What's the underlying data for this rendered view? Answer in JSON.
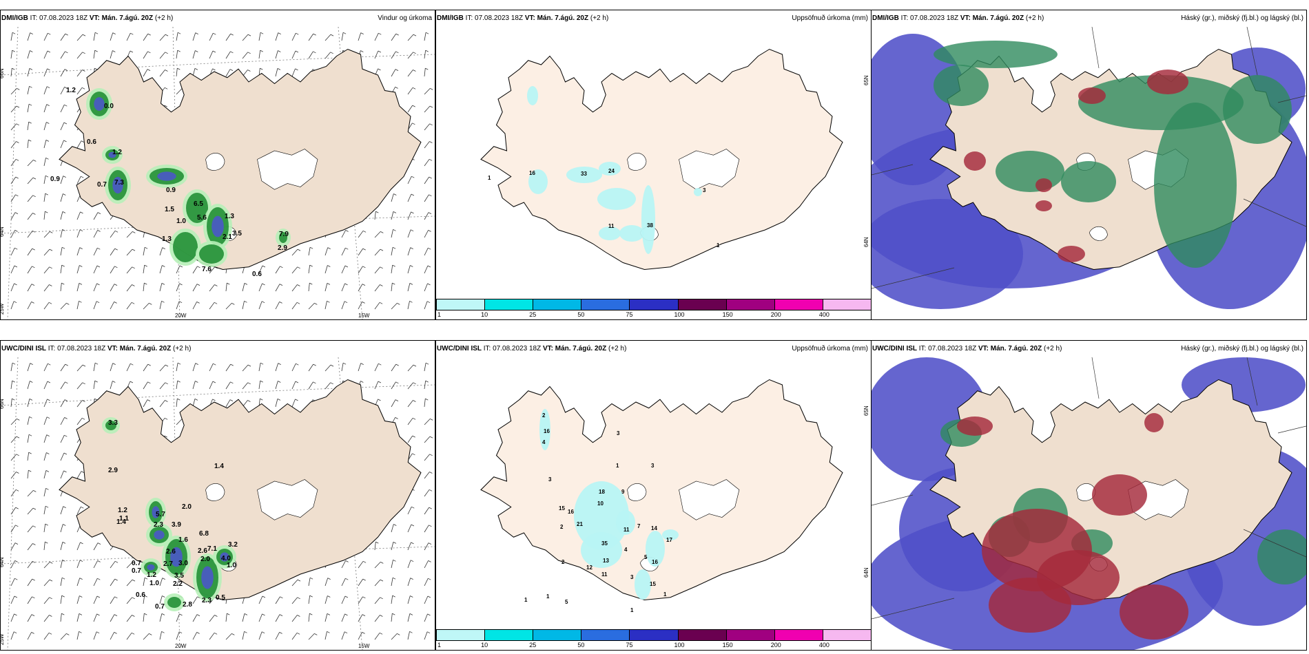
{
  "panels": [
    {
      "id": "p1",
      "model": "DMI/IGB",
      "it_label": "IT:",
      "it_value": "07.08.2023 18Z",
      "vt_label": "VT:",
      "vt_value": "Mán. 7.ágú. 20Z",
      "offset": "(+2 h)",
      "title": "Vindur og úrkoma",
      "type": "wind",
      "axis": {
        "lat_top": "66N",
        "lat_mid": "64N",
        "lon_left": "25W",
        "lon_mid": "20W",
        "lon_right": "15W"
      },
      "values": [
        "1.2",
        "0.0",
        "0.6",
        "1.2",
        "0.9",
        "7.3",
        "0.7",
        "0.9",
        "1.5",
        "6.5",
        "5.6",
        "1.0",
        "1.3",
        "1.3",
        "3.5",
        "2.1",
        "7.9",
        "2.9",
        "7.6",
        "0.6"
      ]
    },
    {
      "id": "p2",
      "model": "DMI/IGB",
      "it_label": "IT:",
      "it_value": "07.08.2023 18Z",
      "vt_label": "VT:",
      "vt_value": "Mán. 7.ágú. 20Z",
      "offset": "(+2 h)",
      "title": "Uppsöfnuð úrkoma (mm)",
      "type": "accum",
      "axis": {
        "lat_top": "65N",
        "lat_mid": "64N"
      },
      "values": [
        "1",
        "16",
        "33",
        "24",
        "11",
        "38",
        "3",
        "1"
      ]
    },
    {
      "id": "p3",
      "model": "DMI/IGB",
      "it_label": "IT:",
      "it_value": "07.08.2023 18Z",
      "vt_label": "VT:",
      "vt_value": "Mán. 7.ágú. 20Z",
      "offset": "(+2 h)",
      "title": "Háský (gr.), miðský (fj.bl.) og lágský (bl.)",
      "type": "cloud"
    },
    {
      "id": "p4",
      "model": "UWC/DINI ISL",
      "it_label": "IT:",
      "it_value": "07.08.2023 18Z",
      "vt_label": "VT:",
      "vt_value": "Mán. 7.ágú. 20Z",
      "offset": "(+2 h)",
      "title": "",
      "type": "wind",
      "axis": {
        "lat_top": "66N",
        "lat_mid": "64N",
        "lon_left": "25W",
        "lon_mid": "20W",
        "lon_right": "15W"
      },
      "values": [
        "3.3",
        "2.9",
        "1.4",
        "1.2",
        "1.1",
        "1.4",
        "5.7",
        "2.3",
        "2.0",
        "1.6",
        "3.9",
        "2.6",
        "6.8",
        "3.2",
        "2.6",
        "2.0",
        "7.1",
        "4.0",
        "0.7",
        "0.7",
        "1.0",
        "2.7",
        "1.2",
        "3.0",
        "3.5",
        "2.2",
        "1.0",
        "0.6",
        "0.7",
        "2.8",
        "2.3",
        "0.5"
      ]
    },
    {
      "id": "p5",
      "model": "UWC/DINI ISL",
      "it_label": "IT:",
      "it_value": "07.08.2023 18Z",
      "vt_label": "VT:",
      "vt_value": "Mán. 7.ágú. 20Z",
      "offset": "(+2 h)",
      "title": "Uppsöfnuð úrkoma (mm)",
      "type": "accum",
      "axis": {
        "lat_top": "65N",
        "lat_mid": "64N"
      },
      "values": [
        "2",
        "16",
        "4",
        "3",
        "3",
        "1",
        "3",
        "18",
        "9",
        "10",
        "15",
        "16",
        "2",
        "21",
        "11",
        "7",
        "14",
        "35",
        "4",
        "5",
        "17",
        "16",
        "2",
        "13",
        "12",
        "11",
        "3",
        "15",
        "1",
        "1",
        "1",
        "5",
        "1"
      ]
    },
    {
      "id": "p6",
      "model": "UWC/DINI ISL",
      "it_label": "IT:",
      "it_value": "07.08.2023 18Z",
      "vt_label": "VT:",
      "vt_value": "Mán. 7.ágú. 20Z",
      "offset": "(+2 h)",
      "title": "Háský (gr.), miðský (fj.bl.) og lágský (bl.)",
      "type": "cloud"
    }
  ],
  "colorbar": {
    "ticks": [
      "1",
      "10",
      "25",
      "50",
      "75",
      "100",
      "150",
      "200",
      "400"
    ],
    "colors": [
      "#bff7f7",
      "#00e5e5",
      "#00b8e6",
      "#2a6de0",
      "#2b2fc4",
      "#6a0050",
      "#a00080",
      "#f000b0",
      "#f6b8f0"
    ]
  },
  "colors": {
    "land": "#efdfcf",
    "land_pale": "#fcefe4",
    "precip_light": "#b7efb8",
    "precip_green": "#1a8a2e",
    "precip_dark": "#0b3d17",
    "precip_blue": "#4a58c8",
    "accum_cyan": "#b8f4f4",
    "cloud_low": "#5050c8",
    "cloud_mid": "#2f8b5e",
    "cloud_high": "#a52a3a"
  }
}
